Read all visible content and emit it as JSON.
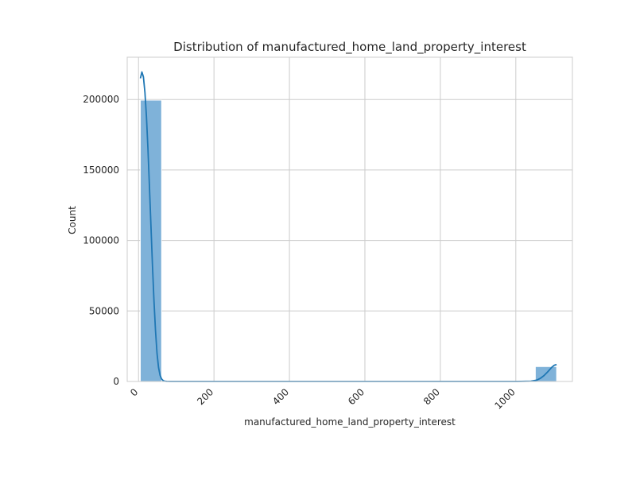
{
  "chart_data": {
    "type": "bar",
    "title": "Distribution of manufactured_home_land_property_interest",
    "xlabel": "manufactured_home_land_property_interest",
    "ylabel": "Count",
    "xlim": [
      -30,
      1150
    ],
    "ylim": [
      0,
      230000
    ],
    "x_ticks": [
      0,
      200,
      400,
      600,
      800,
      1000
    ],
    "y_ticks": [
      0,
      50000,
      100000,
      150000,
      200000
    ],
    "bins": [
      {
        "x0": 5,
        "x1": 61,
        "count": 199500
      },
      {
        "x0": 1052,
        "x1": 1108,
        "count": 10500
      }
    ],
    "kde": [
      [
        5,
        215000
      ],
      [
        9,
        219500
      ],
      [
        13,
        216000
      ],
      [
        17,
        205000
      ],
      [
        21,
        188000
      ],
      [
        25,
        165000
      ],
      [
        29,
        138000
      ],
      [
        33,
        110000
      ],
      [
        37,
        82000
      ],
      [
        41,
        57000
      ],
      [
        45,
        36000
      ],
      [
        49,
        20000
      ],
      [
        53,
        10000
      ],
      [
        57,
        4500
      ],
      [
        61,
        1800
      ],
      [
        65,
        700
      ],
      [
        69,
        250
      ],
      [
        75,
        50
      ],
      [
        85,
        0
      ],
      [
        1000,
        0
      ],
      [
        1040,
        200
      ],
      [
        1055,
        900
      ],
      [
        1065,
        2200
      ],
      [
        1075,
        4200
      ],
      [
        1085,
        7000
      ],
      [
        1095,
        10000
      ],
      [
        1102,
        11500
      ],
      [
        1108,
        12000
      ]
    ],
    "grid": true,
    "colors": {
      "bar": "#7fb2d9",
      "kde": "#1f77b4",
      "grid": "#cccccc",
      "frame": "#cccccc"
    }
  }
}
